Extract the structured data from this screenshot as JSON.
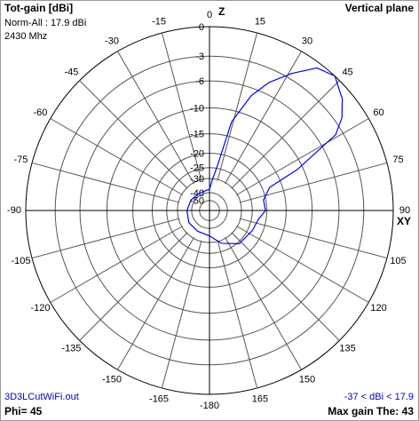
{
  "chart_data": {
    "type": "polar",
    "title": "Tot-gain [dBi]",
    "normalization": "Norm-All : 17.9 dBi",
    "frequency": "2430 Mhz",
    "plane": "Vertical plane",
    "z_label": "Z",
    "xy_label": "XY",
    "file": "3D3LCutWiFi.out",
    "range_note": "-37 < dBi < 17.9",
    "phi": "Phi= 45",
    "max_gain": "Max gain The: 43",
    "scale": "arrl-log",
    "rmax": 0,
    "rticks": [
      0,
      -3,
      -6,
      -10,
      -15,
      -20,
      -25,
      -30,
      -40,
      -50
    ],
    "thetaticks": [
      0,
      15,
      30,
      45,
      60,
      75,
      90,
      105,
      120,
      135,
      150,
      165,
      -180,
      -165,
      -150,
      -135,
      -120,
      -105,
      -90,
      -75,
      -60,
      -45,
      -30,
      -15
    ],
    "x": [
      -180,
      -150,
      -120,
      -90,
      -60,
      -30,
      0,
      5,
      10,
      14,
      20,
      25,
      31,
      37,
      43,
      50,
      55,
      59,
      65,
      69,
      79,
      90,
      100,
      115,
      138,
      160,
      180
    ],
    "series": [
      {
        "color": "#0000ff",
        "values": [
          -34,
          -35,
          -35,
          -36,
          -37,
          -38,
          -37,
          -31,
          -24,
          -12,
          -7,
          -4.5,
          -2.4,
          -0.5,
          0,
          -1,
          -2.2,
          -3.8,
          -11,
          -18,
          -20.7,
          -20.4,
          -22.4,
          -23.3,
          -24.3,
          -28.5,
          -34
        ]
      }
    ]
  }
}
